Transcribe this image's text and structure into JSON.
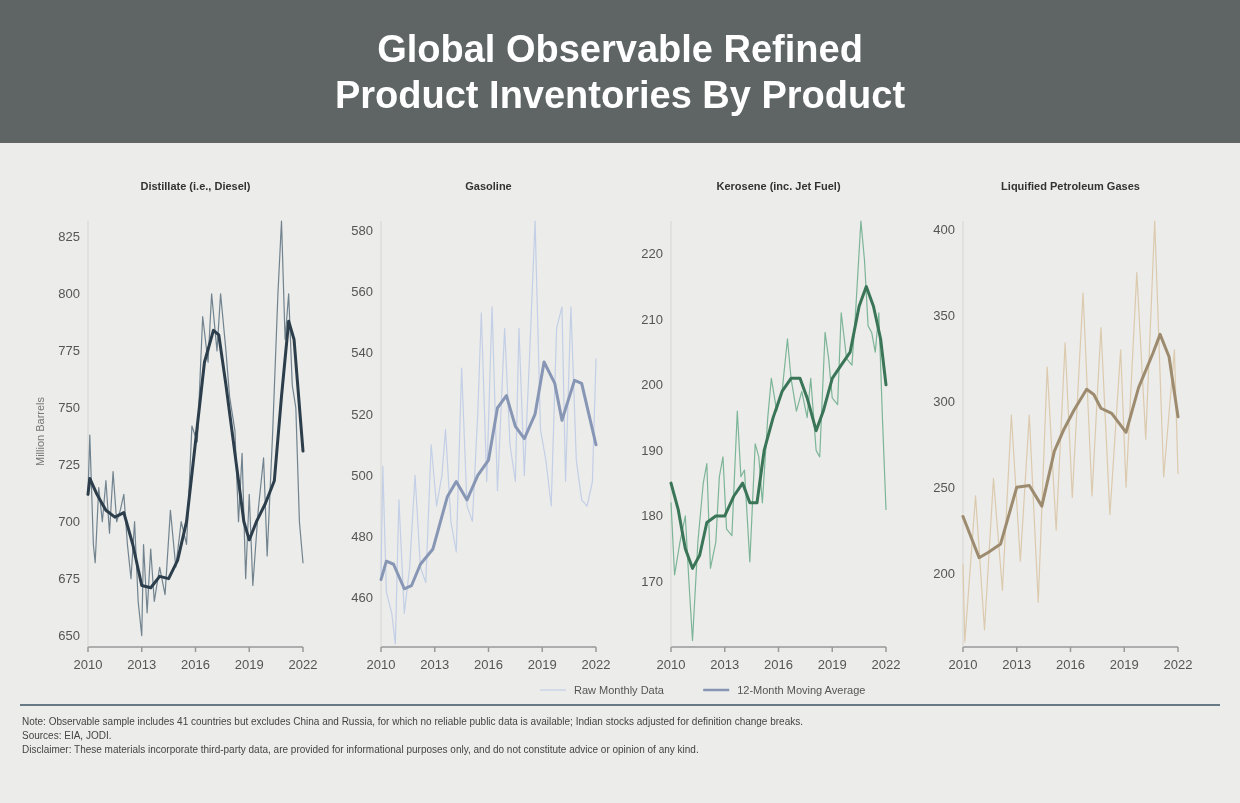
{
  "chart_data": [
    {
      "type": "other",
      "title": "Global Observable Refined Product Inventories By Product",
      "annotations": [
        "Note: Observable sample includes 41 countries but excludes China and Russia, for which no reliable public data is available; Indian stocks adjusted for definition change breaks.",
        "Sources: EIA, JODI.",
        "Disclaimer: These materials incorporate third-party data, are provided for informational purposes only, and do not constitute advice or opinion of any kind."
      ]
    },
    {
      "type": "line",
      "title": "Distillate (i.e., Diesel)",
      "ylabel": "Million Barrels",
      "xlim": [
        2010,
        2022
      ],
      "xticks": [
        2010,
        2013,
        2016,
        2019,
        2022
      ],
      "ylim": [
        645,
        832
      ],
      "yticks": [
        650,
        675,
        700,
        725,
        750,
        775,
        800,
        825
      ],
      "series": [
        {
          "color": "#71838f",
          "x": [
            2010.0,
            2010.1,
            2010.3,
            2010.4,
            2010.6,
            2010.8,
            2011.0,
            2011.2,
            2011.4,
            2011.6,
            2011.8,
            2012.0,
            2012.2,
            2012.4,
            2012.6,
            2012.8,
            2013.0,
            2013.1,
            2013.3,
            2013.5,
            2013.7,
            2014.0,
            2014.3,
            2014.6,
            2014.9,
            2015.2,
            2015.5,
            2015.8,
            2016.1,
            2016.4,
            2016.7,
            2016.9,
            2017.2,
            2017.4,
            2017.7,
            2017.9,
            2018.2,
            2018.4,
            2018.6,
            2018.8,
            2019.0,
            2019.2,
            2019.5,
            2019.8,
            2020.0,
            2020.3,
            2020.6,
            2020.8,
            2021.0,
            2021.2,
            2021.4,
            2021.6,
            2021.8,
            2022.0
          ],
          "values": [
            712,
            738,
            690,
            682,
            715,
            700,
            718,
            695,
            722,
            700,
            705,
            712,
            690,
            675,
            700,
            665,
            650,
            690,
            660,
            688,
            665,
            680,
            668,
            705,
            680,
            700,
            690,
            742,
            735,
            790,
            770,
            800,
            775,
            800,
            775,
            755,
            740,
            700,
            730,
            675,
            712,
            672,
            705,
            728,
            685,
            738,
            800,
            832,
            780,
            800,
            760,
            750,
            700,
            682
          ]
        },
        {
          "color": "#2c3e4b",
          "x": [
            2010.0,
            2010.1,
            2010.5,
            2011.0,
            2011.5,
            2012.0,
            2012.5,
            2013.0,
            2013.5,
            2014.0,
            2014.5,
            2015.0,
            2015.5,
            2016.0,
            2016.5,
            2017.0,
            2017.3,
            2017.7,
            2018.2,
            2018.7,
            2019.0,
            2019.4,
            2019.9,
            2020.4,
            2020.8,
            2021.2,
            2021.5,
            2022.0
          ],
          "values": [
            712,
            719,
            712,
            705,
            702,
            704,
            690,
            672,
            671,
            676,
            675,
            683,
            700,
            735,
            770,
            784,
            782,
            760,
            730,
            700,
            692,
            700,
            708,
            718,
            755,
            788,
            780,
            731
          ]
        }
      ]
    },
    {
      "type": "line",
      "title": "Gasoline",
      "xlim": [
        2010,
        2022
      ],
      "xticks": [
        2010,
        2013,
        2016,
        2019,
        2022
      ],
      "ylim": [
        444,
        583
      ],
      "yticks": [
        460,
        480,
        500,
        520,
        540,
        560,
        580
      ],
      "legend": "bottom",
      "series": [
        {
          "name": "Raw Monthly Data",
          "color": "#c3cfe6",
          "x": [
            2010.0,
            2010.1,
            2010.3,
            2010.6,
            2010.8,
            2011.0,
            2011.3,
            2011.6,
            2011.9,
            2012.2,
            2012.5,
            2012.8,
            2013.1,
            2013.4,
            2013.6,
            2013.9,
            2014.2,
            2014.5,
            2014.8,
            2015.1,
            2015.4,
            2015.6,
            2015.9,
            2016.2,
            2016.5,
            2016.9,
            2017.2,
            2017.5,
            2017.7,
            2018.0,
            2018.3,
            2018.6,
            2018.9,
            2019.2,
            2019.5,
            2019.8,
            2020.1,
            2020.3,
            2020.6,
            2020.9,
            2021.2,
            2021.5,
            2021.8,
            2022.0
          ],
          "values": [
            466,
            503,
            462,
            455,
            445,
            492,
            455,
            470,
            500,
            470,
            465,
            510,
            490,
            500,
            515,
            485,
            475,
            535,
            490,
            485,
            520,
            553,
            498,
            555,
            495,
            548,
            510,
            498,
            548,
            500,
            540,
            583,
            515,
            505,
            490,
            548,
            555,
            498,
            555,
            505,
            492,
            490,
            498,
            538
          ]
        },
        {
          "name": "12-Month Moving Average",
          "color": "#8796b4",
          "x": [
            2010.0,
            2010.3,
            2010.7,
            2011.3,
            2011.7,
            2012.2,
            2012.9,
            2013.7,
            2014.2,
            2014.8,
            2015.4,
            2016.0,
            2016.5,
            2017.0,
            2017.5,
            2018.0,
            2018.6,
            2019.1,
            2019.7,
            2020.1,
            2020.8,
            2021.2,
            2021.6,
            2022.0
          ],
          "values": [
            466,
            472,
            471,
            463,
            464,
            471,
            476,
            493,
            498,
            492,
            500,
            505,
            522,
            526,
            516,
            512,
            520,
            537,
            530,
            518,
            531,
            530,
            520,
            510
          ]
        }
      ]
    },
    {
      "type": "line",
      "title": "Kerosene (inc. Jet Fuel)",
      "xlim": [
        2010,
        2022
      ],
      "xticks": [
        2010,
        2013,
        2016,
        2019,
        2022
      ],
      "ylim": [
        160,
        225
      ],
      "yticks": [
        170,
        180,
        190,
        200,
        210,
        220
      ],
      "series": [
        {
          "color": "#7db598",
          "x": [
            2010.0,
            2010.2,
            2010.5,
            2010.8,
            2011.0,
            2011.2,
            2011.5,
            2011.8,
            2012.0,
            2012.2,
            2012.5,
            2012.7,
            2012.9,
            2013.1,
            2013.4,
            2013.7,
            2013.9,
            2014.1,
            2014.4,
            2014.7,
            2014.9,
            2015.1,
            2015.4,
            2015.6,
            2015.9,
            2016.2,
            2016.5,
            2016.7,
            2017.0,
            2017.3,
            2017.6,
            2017.8,
            2018.1,
            2018.3,
            2018.6,
            2018.8,
            2019.0,
            2019.3,
            2019.5,
            2019.8,
            2020.1,
            2020.3,
            2020.6,
            2020.8,
            2021.0,
            2021.2,
            2021.4,
            2021.6,
            2021.8,
            2022.0
          ],
          "values": [
            182,
            171,
            176,
            180,
            170,
            161,
            176,
            185,
            188,
            172,
            176,
            186,
            189,
            178,
            177,
            196,
            186,
            187,
            173,
            191,
            189,
            182,
            195,
            201,
            196,
            199,
            207,
            201,
            196,
            199,
            195,
            201,
            190,
            189,
            208,
            204,
            198,
            197,
            211,
            204,
            203,
            211,
            225,
            219,
            209,
            208,
            205,
            211,
            195,
            181
          ]
        },
        {
          "color": "#3b7558",
          "x": [
            2010.0,
            2010.4,
            2010.8,
            2011.2,
            2011.6,
            2012.0,
            2012.5,
            2013.0,
            2013.5,
            2014.0,
            2014.4,
            2014.8,
            2015.2,
            2015.7,
            2016.2,
            2016.7,
            2017.2,
            2017.6,
            2018.1,
            2018.5,
            2019.0,
            2019.5,
            2020.0,
            2020.5,
            2020.9,
            2021.3,
            2021.7,
            2022.0
          ],
          "values": [
            185,
            181,
            175,
            172,
            174,
            179,
            180,
            180,
            183,
            185,
            182,
            182,
            190,
            195,
            199,
            201,
            201,
            198,
            193,
            196,
            201,
            203,
            205,
            212,
            215,
            212,
            207,
            200
          ]
        }
      ]
    },
    {
      "type": "line",
      "title": "Liquified Petroleum Gases",
      "xlim": [
        2010,
        2022
      ],
      "xticks": [
        2010,
        2013,
        2016,
        2019,
        2022
      ],
      "ylim": [
        157,
        405
      ],
      "yticks": [
        200,
        250,
        300,
        350,
        400
      ],
      "series": [
        {
          "color": "#dccaae",
          "x": [
            2010.0,
            2010.1,
            2010.7,
            2011.2,
            2011.7,
            2012.2,
            2012.7,
            2013.2,
            2013.7,
            2014.2,
            2014.7,
            2015.2,
            2015.7,
            2016.1,
            2016.7,
            2017.2,
            2017.7,
            2018.2,
            2018.8,
            2019.1,
            2019.7,
            2020.2,
            2020.7,
            2021.2,
            2021.8,
            2022.0
          ],
          "values": [
            205,
            160,
            245,
            167,
            255,
            190,
            292,
            207,
            292,
            183,
            320,
            225,
            334,
            244,
            363,
            245,
            343,
            234,
            330,
            250,
            375,
            278,
            405,
            256,
            330,
            258
          ]
        },
        {
          "color": "#9d8b6f",
          "x": [
            2010.0,
            2010.9,
            2011.4,
            2012.1,
            2013.0,
            2013.7,
            2014.4,
            2015.1,
            2015.6,
            2016.2,
            2016.9,
            2017.3,
            2017.7,
            2018.3,
            2019.1,
            2019.8,
            2020.6,
            2021.0,
            2021.5,
            2022.0
          ],
          "values": [
            233,
            209,
            212,
            217,
            250,
            251,
            239,
            271,
            283,
            295,
            307,
            304,
            296,
            293,
            282,
            308,
            328,
            339,
            326,
            291
          ]
        }
      ]
    }
  ]
}
